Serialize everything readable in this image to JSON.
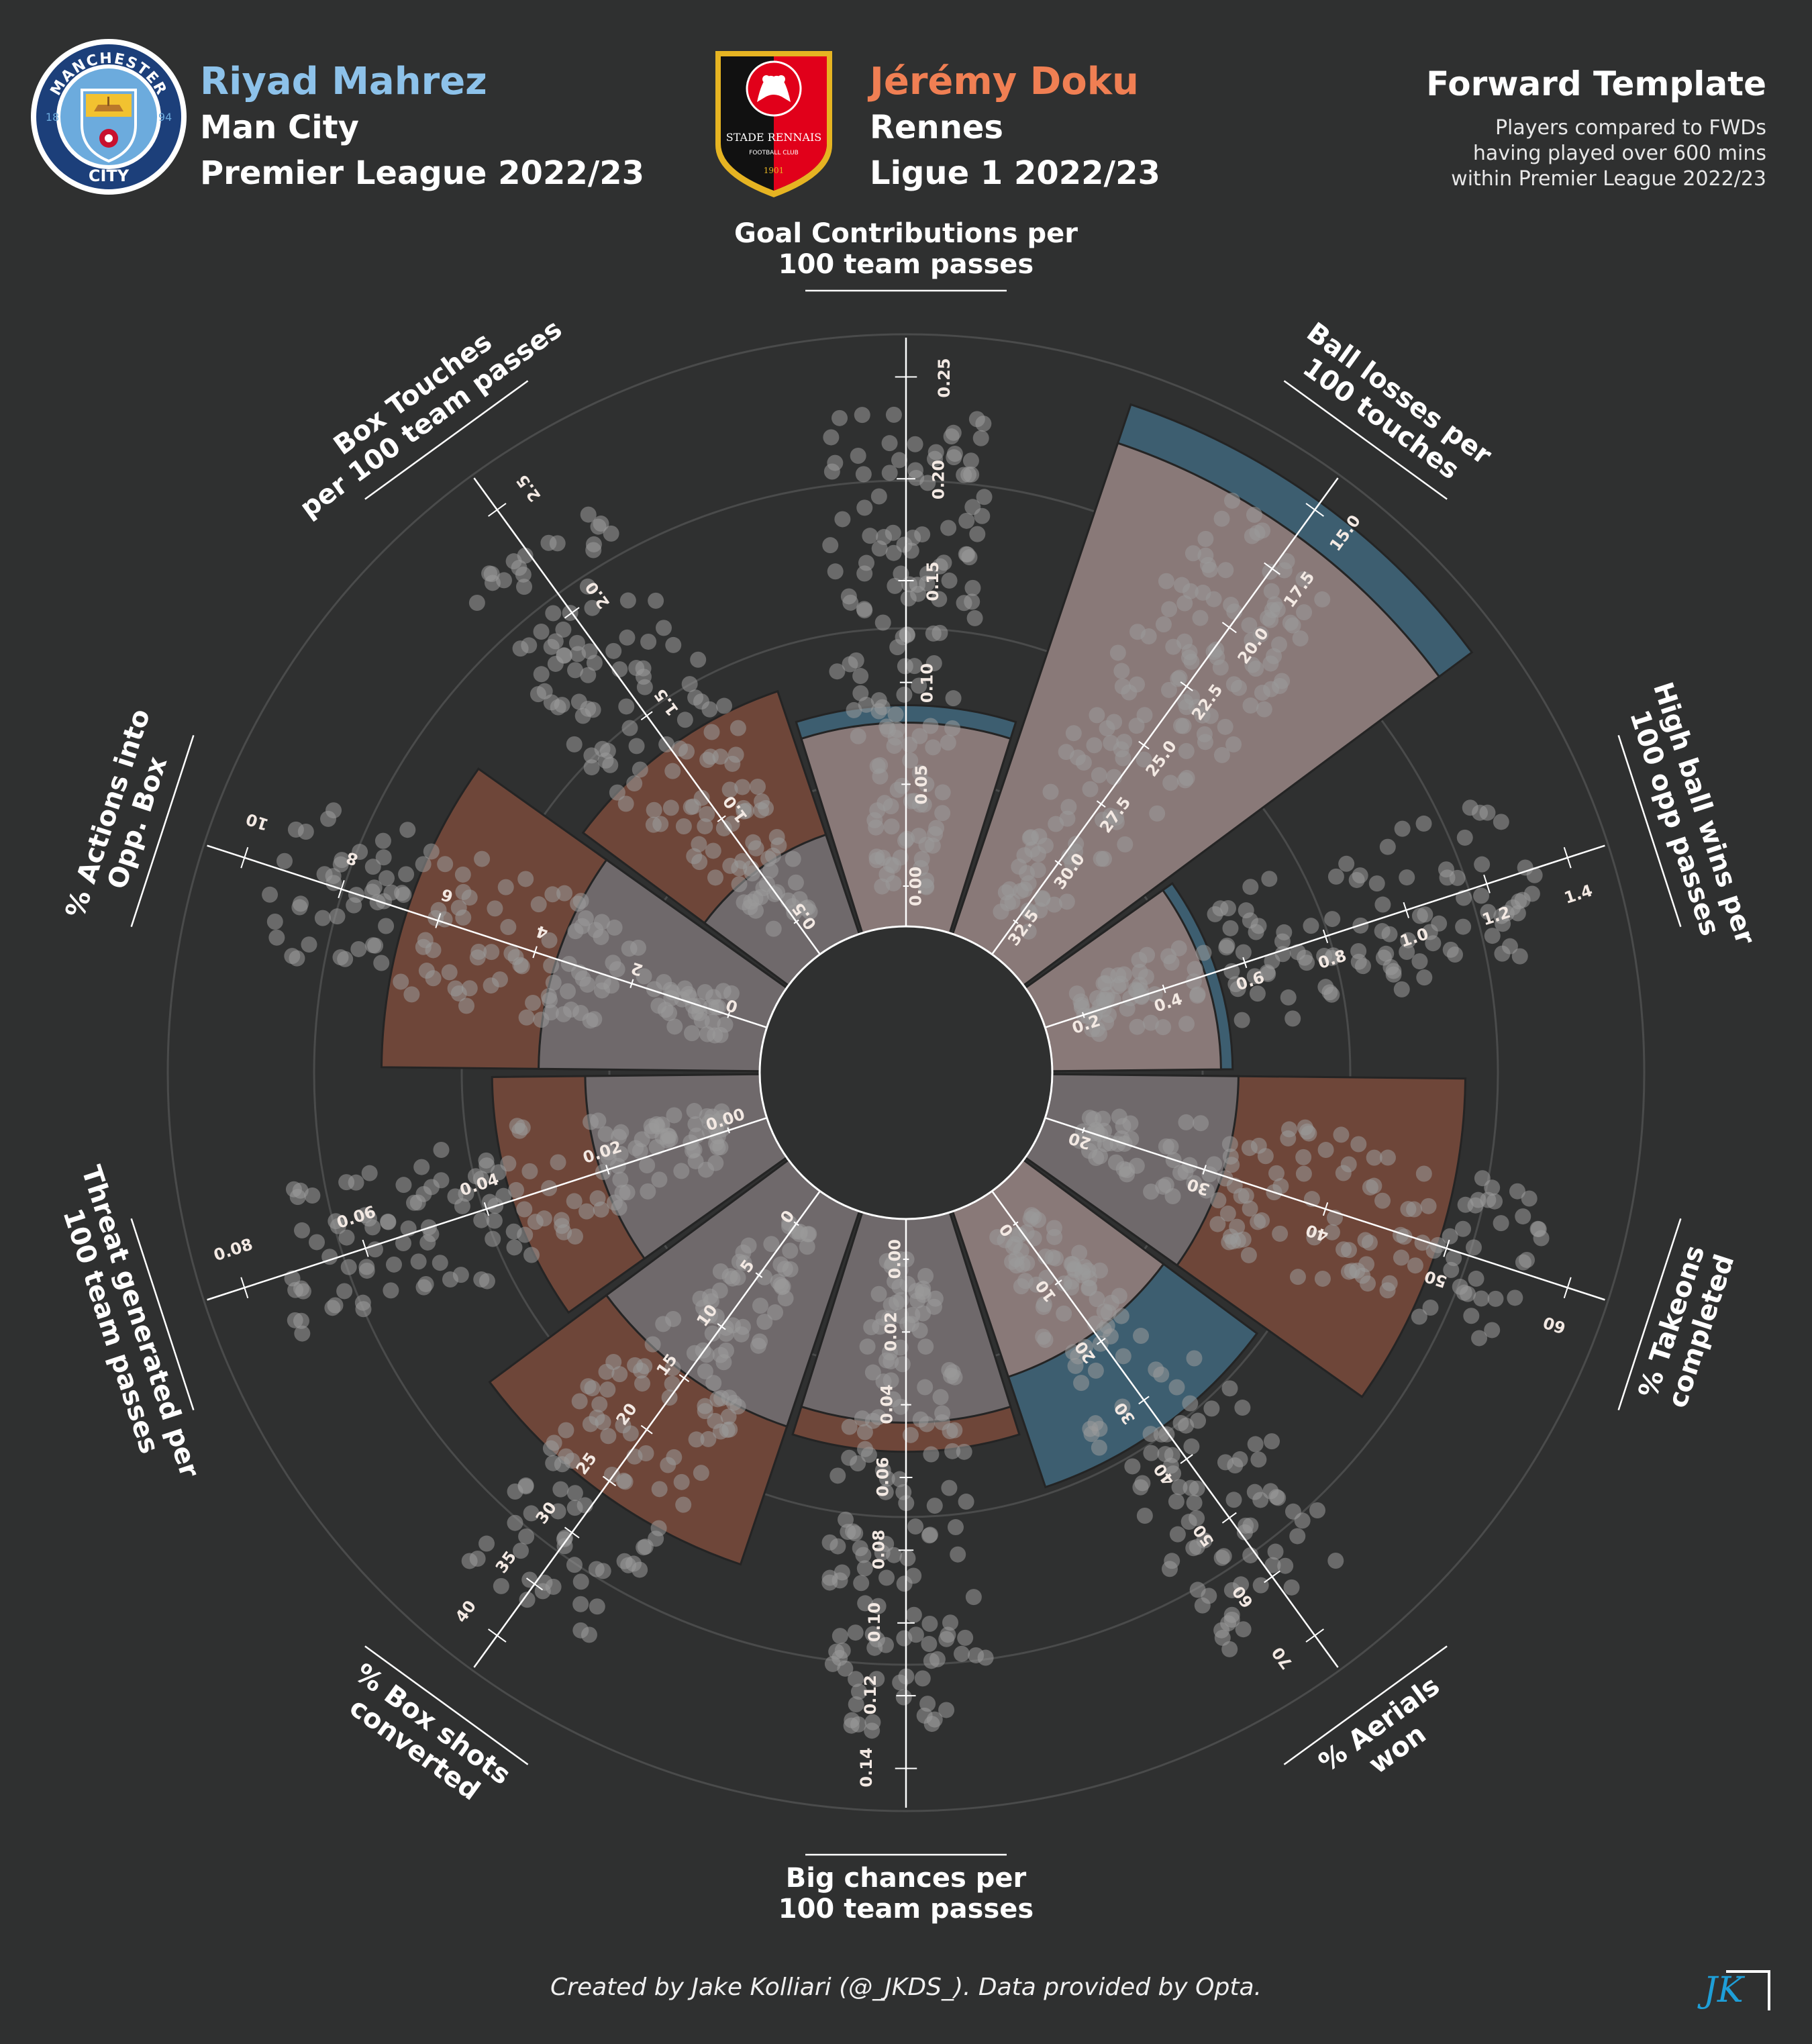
{
  "player1": {
    "name": "Riyad Mahrez",
    "team": "Man City",
    "league": "Premier League 2022/23",
    "badge_ring_text": "MANCHESTER",
    "badge_bottom_text": "CITY",
    "badge_left_num": "18",
    "badge_right_num": "94",
    "color": "#8dc2ea"
  },
  "player2": {
    "name": "Jérémy Doku",
    "team": "Rennes",
    "league": "Ligue 1 2022/23",
    "badge_text": "STADE RENNAIS",
    "badge_sub": "FOOTBALL CLUB",
    "badge_year": "1901",
    "color": "#f07f53"
  },
  "template": {
    "title": "Forward Template",
    "subtitle_lines": [
      "Players compared to FWDs",
      "having played over 600 mins",
      "within Premier League 2022/23"
    ]
  },
  "footer": {
    "credit": "Created by Jake Kolliari (@_JKDS_). Data provided by Opta.",
    "logo": "JK"
  },
  "chart_data": {
    "type": "radar-pizza",
    "note_order": "clockwise from top",
    "colors": {
      "player1_bar": "#3d5e70",
      "player2_bar": "#6e4639",
      "overlap_light": "#8f7c78",
      "overlap_grey": "#6f6d70",
      "distribution_points": "#9a9a9a",
      "background": "#2f3030"
    },
    "metrics": [
      {
        "label": "Goal Contributions per\n100 team passes",
        "ticks": [
          "0.00",
          "0.05",
          "0.10",
          "0.15",
          "0.20",
          "0.25"
        ],
        "range": [
          0.0,
          0.28
        ],
        "inverted": false,
        "player1_percentile": 38,
        "player2_percentile": 35,
        "winner": "player1"
      },
      {
        "label": "Ball losses per\n100 touches",
        "ticks": [
          "32.5",
          "30.0",
          "27.5",
          "25.0",
          "22.5",
          "20.0",
          "17.5",
          "15.0"
        ],
        "range": [
          33.5,
          13.0
        ],
        "inverted": true,
        "player1_percentile": 96,
        "player2_percentile": 89,
        "winner": "player1"
      },
      {
        "label": "High ball wins per\n100 opp passes",
        "ticks": [
          "0.2",
          "0.4",
          "0.6",
          "0.8",
          "1.0",
          "1.2",
          "1.4"
        ],
        "range": [
          0.05,
          1.5
        ],
        "inverted": false,
        "player1_percentile": 31,
        "player2_percentile": 29,
        "winner": "player1"
      },
      {
        "label": "% Takeons\ncompleted",
        "ticks": [
          "20",
          "30",
          "40",
          "50",
          "60"
        ],
        "range": [
          12,
          67
        ],
        "inverted": false,
        "player1_percentile": 32,
        "player2_percentile": 71,
        "winner": "player2"
      },
      {
        "label": "% Aerials\nwon",
        "ticks": [
          "0",
          "10",
          "20",
          "30",
          "40",
          "50",
          "60",
          "70"
        ],
        "range": [
          -2,
          72
        ],
        "inverted": false,
        "player1_percentile": 50,
        "player2_percentile": 30,
        "winner": "player1"
      },
      {
        "label": "Big chances per\n100 team passes",
        "ticks": [
          "0.00",
          "0.02",
          "0.04",
          "0.06",
          "0.08",
          "0.10",
          "0.12",
          "0.14"
        ],
        "range": [
          0.0,
          0.145
        ],
        "inverted": false,
        "player1_percentile": 35,
        "player2_percentile": 40,
        "winner": "player2"
      },
      {
        "label": "% Box shots\nconverted",
        "ticks": [
          "0",
          "5",
          "10",
          "15",
          "20",
          "25",
          "30",
          "35",
          "40"
        ],
        "range": [
          -2,
          44
        ],
        "inverted": false,
        "player1_percentile": 39,
        "player2_percentile": 64,
        "winner": "player2"
      },
      {
        "label": "Threat generated per\n100 team passes",
        "ticks": [
          "0.00",
          "0.02",
          "0.04",
          "0.06",
          "0.08"
        ],
        "range": [
          -0.005,
          0.1
        ],
        "inverted": false,
        "player1_percentile": 30,
        "player2_percentile": 46,
        "winner": "player2"
      },
      {
        "label": "% Actions into\nOpp. Box",
        "ticks": [
          "0",
          "2",
          "4",
          "6",
          "8",
          "10"
        ],
        "range": [
          -1,
          11
        ],
        "inverted": false,
        "player1_percentile": 38,
        "player2_percentile": 65,
        "winner": "player2"
      },
      {
        "label": "Box Touches\nper 100 team passes",
        "ticks": [
          "0.5",
          "1.0",
          "1.5",
          "2.0",
          "2.5"
        ],
        "range": [
          0.2,
          2.75
        ],
        "inverted": false,
        "player1_percentile": 18,
        "player2_percentile": 44,
        "winner": "player2"
      }
    ]
  }
}
